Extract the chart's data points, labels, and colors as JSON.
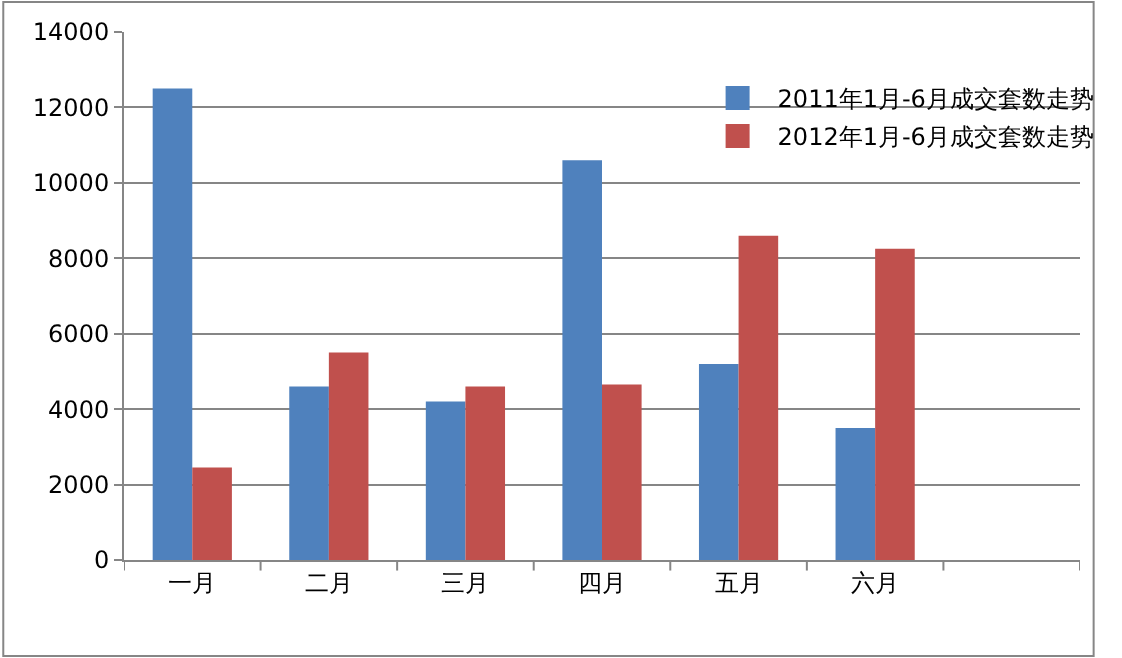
{
  "chart_data": {
    "type": "bar",
    "categories": [
      "一月",
      "二月",
      "三月",
      "四月",
      "五月",
      "六月",
      null
    ],
    "series": [
      {
        "name": "2011年1月-6月成交套数走势",
        "color": "#4f81bd",
        "values": [
          12500,
          4600,
          4200,
          10600,
          5200,
          3500,
          null
        ]
      },
      {
        "name": "2012年1月-6月成交套数走势",
        "color": "#c0504d",
        "values": [
          2450,
          5500,
          4600,
          4650,
          8600,
          8250,
          null
        ]
      }
    ],
    "ylim": [
      0,
      14000
    ],
    "yticks": [
      0,
      2000,
      4000,
      6000,
      8000,
      10000,
      12000,
      14000
    ],
    "grid": "y",
    "legend": "top right"
  }
}
